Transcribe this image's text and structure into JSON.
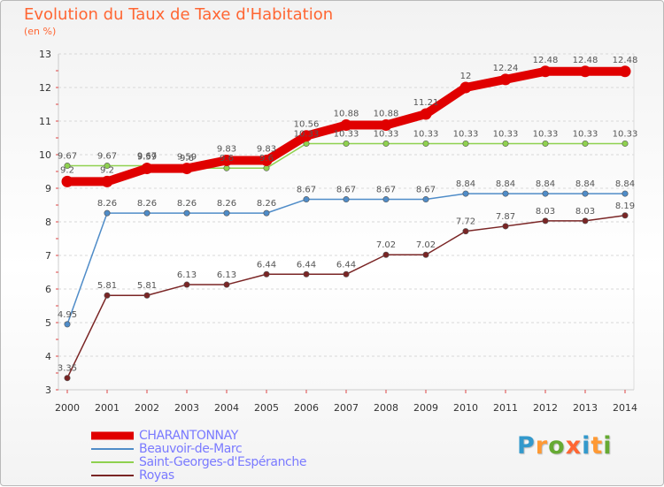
{
  "header": {
    "title": "Evolution du Taux de Taxe d'Habitation",
    "subtitle": "(en %)"
  },
  "logo_text": "Proxiti",
  "chart_data": {
    "type": "line",
    "title": "Evolution du Taux de Taxe d'Habitation",
    "ylabel": "(en %)",
    "xlabel": "",
    "ylim": [
      3,
      13
    ],
    "yticks": [
      3,
      4,
      5,
      6,
      7,
      8,
      9,
      10,
      11,
      12,
      13
    ],
    "grid": "horizontal dashed",
    "legend": "bottom-left",
    "categories": [
      "2000",
      "2001",
      "2002",
      "2003",
      "2004",
      "2005",
      "2006",
      "2007",
      "2008",
      "2009",
      "2010",
      "2011",
      "2012",
      "2013",
      "2014"
    ],
    "series": [
      {
        "name": "CHARANTONNAY",
        "color": "#e00000",
        "values": [
          9.2,
          9.2,
          9.59,
          9.59,
          9.83,
          9.83,
          10.56,
          10.88,
          10.88,
          11.21,
          12,
          12.24,
          12.48,
          12.48,
          12.48
        ],
        "labels": [
          "9.2",
          "9.2",
          "9.59",
          "9.59",
          "9.83",
          "9.83",
          "10.56",
          "10.88",
          "10.88",
          "11.21",
          "12",
          "12.24",
          "12.48",
          "12.48",
          "12.48"
        ]
      },
      {
        "name": "Beauvoir-de-Marc",
        "color": "#4f8cc8",
        "values": [
          4.95,
          8.26,
          8.26,
          8.26,
          8.26,
          8.26,
          8.67,
          8.67,
          8.67,
          8.67,
          8.84,
          8.84,
          8.84,
          8.84,
          8.84
        ],
        "labels": [
          "4.95",
          "8.26",
          "8.26",
          "8.26",
          "8.26",
          "8.26",
          "8.67",
          "8.67",
          "8.67",
          "8.67",
          "8.84",
          "8.84",
          "8.84",
          "8.84",
          "8.84"
        ]
      },
      {
        "name": "Saint-Georges-d'Espéranche",
        "color": "#8fd14f",
        "values": [
          9.67,
          9.67,
          9.67,
          9.6,
          9.6,
          9.6,
          10.33,
          10.33,
          10.33,
          10.33,
          10.33,
          10.33,
          10.33,
          10.33,
          10.33
        ],
        "labels": [
          "9.67",
          "9.67",
          "9.67",
          "9.6",
          "9.6",
          "9.6",
          "10.33",
          "10.33",
          "10.33",
          "10.33",
          "10.33",
          "10.33",
          "10.33",
          "10.33",
          "10.33"
        ]
      },
      {
        "name": "Royas",
        "color": "#7a2525",
        "values": [
          3.35,
          5.81,
          5.81,
          6.13,
          6.13,
          6.44,
          6.44,
          6.44,
          7.02,
          7.02,
          7.72,
          7.87,
          8.03,
          8.03,
          8.19
        ],
        "labels": [
          "3.35",
          "5.81",
          "5.81",
          "6.13",
          "6.13",
          "6.44",
          "6.44",
          "6.44",
          "7.02",
          "7.02",
          "7.72",
          "7.87",
          "8.03",
          "8.03",
          "8.19"
        ]
      }
    ]
  }
}
